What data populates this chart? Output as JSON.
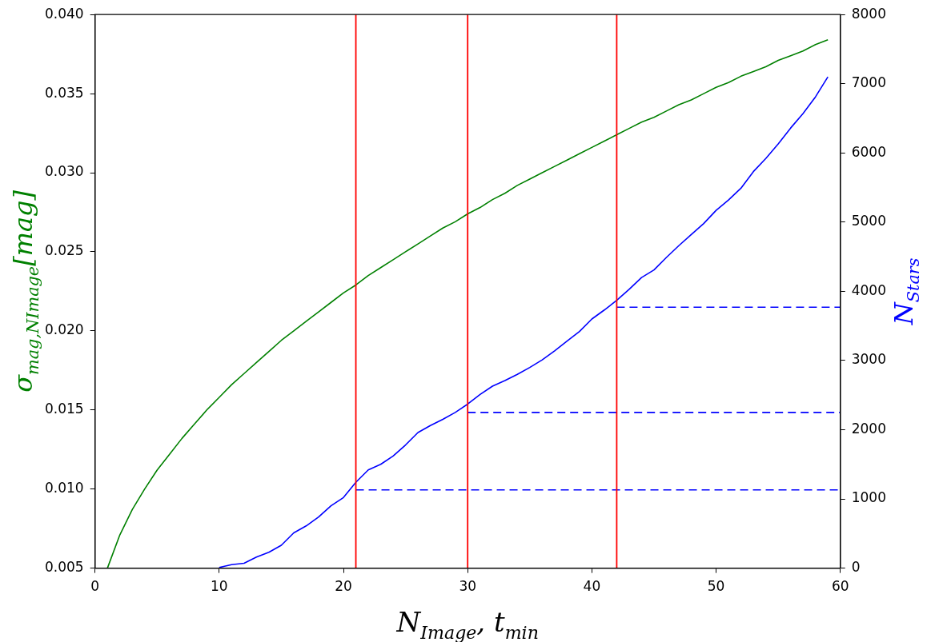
{
  "chart_data": {
    "type": "line",
    "xlabel": "N$_{Image}$, t$_{min}$",
    "ylabel": "σ$_{mag,NImage}$[mag]",
    "y2label": "N$_{Stars}$",
    "xlim": [
      0,
      60
    ],
    "xticks": [
      0,
      10,
      20,
      30,
      40,
      50,
      60
    ],
    "ylim": [
      0.005,
      0.04
    ],
    "yticks": [
      {
        "value": 0.005,
        "label": "0.005"
      },
      {
        "value": 0.01,
        "label": "0.010"
      },
      {
        "value": 0.015,
        "label": "0.015"
      },
      {
        "value": 0.02,
        "label": "0.020"
      },
      {
        "value": 0.025,
        "label": "0.025"
      },
      {
        "value": 0.03,
        "label": "0.030"
      },
      {
        "value": 0.035,
        "label": "0.035"
      },
      {
        "value": 0.04,
        "label": "0.040"
      }
    ],
    "y2lim": [
      0,
      8000
    ],
    "y2ticks": [
      0,
      1000,
      2000,
      3000,
      4000,
      5000,
      6000,
      7000,
      8000
    ],
    "grid": false,
    "legend": false,
    "marker": "none",
    "series": [
      {
        "color": "#008000",
        "x": [
          1,
          2,
          3,
          4,
          5,
          6,
          7,
          8,
          9,
          10,
          11,
          12,
          13,
          14,
          15,
          16,
          17,
          18,
          19,
          20,
          21,
          22,
          23,
          24,
          25,
          26,
          27,
          28,
          29,
          30,
          31,
          32,
          33,
          34,
          35,
          36,
          37,
          38,
          39,
          40,
          41,
          42,
          43,
          44,
          45,
          46,
          47,
          48,
          49,
          50,
          51,
          52,
          53,
          54,
          55,
          56,
          57,
          58,
          59
        ],
        "values": [
          0.005,
          0.0071,
          0.0087,
          0.01,
          0.0112,
          0.0122,
          0.0132,
          0.0141,
          0.015,
          0.0158,
          0.0166,
          0.0173,
          0.018,
          0.0187,
          0.0194,
          0.02,
          0.0206,
          0.0212,
          0.0218,
          0.0224,
          0.0229,
          0.0235,
          0.024,
          0.0245,
          0.025,
          0.0255,
          0.026,
          0.0265,
          0.0269,
          0.0274,
          0.0278,
          0.0283,
          0.0287,
          0.0292,
          0.0296,
          0.03,
          0.0304,
          0.0308,
          0.0312,
          0.0316,
          0.032,
          0.0324,
          0.0328,
          0.0332,
          0.0335,
          0.0339,
          0.0343,
          0.0346,
          0.035,
          0.0354,
          0.0357,
          0.0361,
          0.0364,
          0.0367,
          0.0371,
          0.0374,
          0.0377,
          0.0381,
          0.0384
        ]
      },
      {
        "axis": "y2",
        "color": "#0000ff",
        "x": [
          10,
          11,
          12,
          13,
          14,
          15,
          16,
          17,
          18,
          19,
          20,
          21,
          22,
          23,
          24,
          25,
          26,
          27,
          28,
          29,
          30,
          31,
          32,
          33,
          34,
          35,
          36,
          37,
          38,
          39,
          40,
          41,
          42,
          43,
          44,
          45,
          46,
          47,
          48,
          49,
          50,
          51,
          52,
          53,
          54,
          55,
          56,
          57,
          58,
          59
        ],
        "values": [
          10,
          50,
          70,
          160,
          230,
          330,
          510,
          610,
          740,
          900,
          1020,
          1240,
          1420,
          1500,
          1620,
          1780,
          1960,
          2060,
          2150,
          2250,
          2370,
          2510,
          2630,
          2710,
          2800,
          2900,
          3010,
          3140,
          3280,
          3420,
          3600,
          3730,
          3870,
          4030,
          4200,
          4310,
          4490,
          4660,
          4820,
          4980,
          5170,
          5320,
          5490,
          5730,
          5920,
          6130,
          6360,
          6570,
          6810,
          7100
        ]
      },
      {
        "axis": "y2",
        "color": "#0000ff",
        "line_style": "dashed",
        "x": [
          21,
          60
        ],
        "values": [
          1130,
          1130
        ]
      },
      {
        "axis": "y2",
        "color": "#0000ff",
        "line_style": "dashed",
        "x": [
          30,
          60
        ],
        "values": [
          2250,
          2250
        ]
      },
      {
        "axis": "y2",
        "color": "#0000ff",
        "line_style": "dashed",
        "x": [
          42,
          60
        ],
        "values": [
          3770,
          3770
        ]
      }
    ],
    "ref_lines": [
      {
        "axis": "x",
        "value": 21,
        "color": "#ff0000"
      },
      {
        "axis": "x",
        "value": 30,
        "color": "#ff0000"
      },
      {
        "axis": "x",
        "value": 42,
        "color": "#ff0000"
      }
    ]
  }
}
